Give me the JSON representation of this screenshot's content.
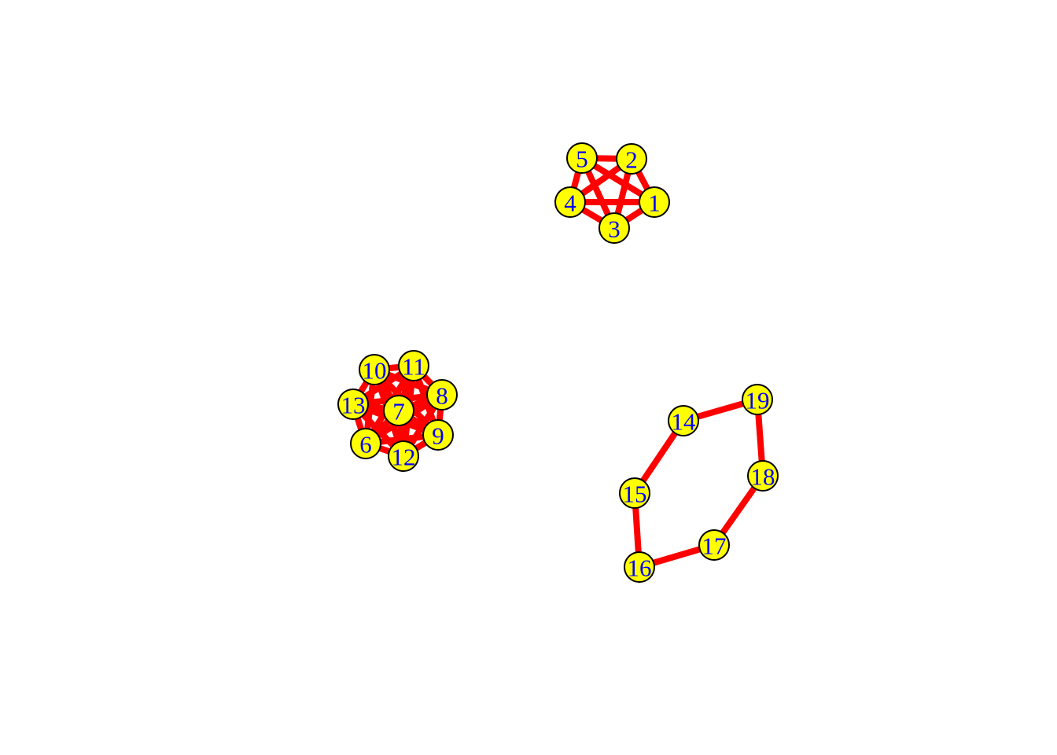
{
  "colors": {
    "edge": "#ff0000",
    "node_fill": "#ffff00",
    "node_stroke": "#000000",
    "label": "#0000ff",
    "background": "#ffffff"
  },
  "graph": {
    "nodes": [
      {
        "id": "1",
        "label": "1",
        "component": 1
      },
      {
        "id": "2",
        "label": "2",
        "component": 1
      },
      {
        "id": "3",
        "label": "3",
        "component": 1
      },
      {
        "id": "4",
        "label": "4",
        "component": 1
      },
      {
        "id": "5",
        "label": "5",
        "component": 1
      },
      {
        "id": "6",
        "label": "6",
        "component": 2
      },
      {
        "id": "7",
        "label": "7",
        "component": 2
      },
      {
        "id": "8",
        "label": "8",
        "component": 2
      },
      {
        "id": "9",
        "label": "9",
        "component": 2
      },
      {
        "id": "10",
        "label": "10",
        "component": 2
      },
      {
        "id": "11",
        "label": "11",
        "component": 2
      },
      {
        "id": "12",
        "label": "12",
        "component": 2
      },
      {
        "id": "13",
        "label": "13",
        "component": 2
      },
      {
        "id": "14",
        "label": "14",
        "component": 3
      },
      {
        "id": "15",
        "label": "15",
        "component": 3
      },
      {
        "id": "16",
        "label": "16",
        "component": 3
      },
      {
        "id": "17",
        "label": "17",
        "component": 3
      },
      {
        "id": "18",
        "label": "18",
        "component": 3
      },
      {
        "id": "19",
        "label": "19",
        "component": 3
      }
    ],
    "edges": [
      [
        "1",
        "2"
      ],
      [
        "1",
        "3"
      ],
      [
        "1",
        "4"
      ],
      [
        "1",
        "5"
      ],
      [
        "2",
        "3"
      ],
      [
        "2",
        "4"
      ],
      [
        "2",
        "5"
      ],
      [
        "3",
        "4"
      ],
      [
        "3",
        "5"
      ],
      [
        "4",
        "5"
      ],
      [
        "6",
        "7"
      ],
      [
        "6",
        "8"
      ],
      [
        "6",
        "9"
      ],
      [
        "6",
        "10"
      ],
      [
        "6",
        "11"
      ],
      [
        "6",
        "12"
      ],
      [
        "6",
        "13"
      ],
      [
        "7",
        "8"
      ],
      [
        "7",
        "9"
      ],
      [
        "7",
        "10"
      ],
      [
        "7",
        "11"
      ],
      [
        "7",
        "12"
      ],
      [
        "7",
        "13"
      ],
      [
        "8",
        "9"
      ],
      [
        "8",
        "10"
      ],
      [
        "8",
        "11"
      ],
      [
        "8",
        "12"
      ],
      [
        "8",
        "13"
      ],
      [
        "9",
        "10"
      ],
      [
        "9",
        "11"
      ],
      [
        "9",
        "12"
      ],
      [
        "9",
        "13"
      ],
      [
        "10",
        "11"
      ],
      [
        "10",
        "12"
      ],
      [
        "10",
        "13"
      ],
      [
        "11",
        "12"
      ],
      [
        "11",
        "13"
      ],
      [
        "12",
        "13"
      ],
      [
        "14",
        "15"
      ],
      [
        "15",
        "16"
      ],
      [
        "16",
        "17"
      ],
      [
        "17",
        "18"
      ],
      [
        "18",
        "19"
      ],
      [
        "19",
        "14"
      ]
    ]
  }
}
